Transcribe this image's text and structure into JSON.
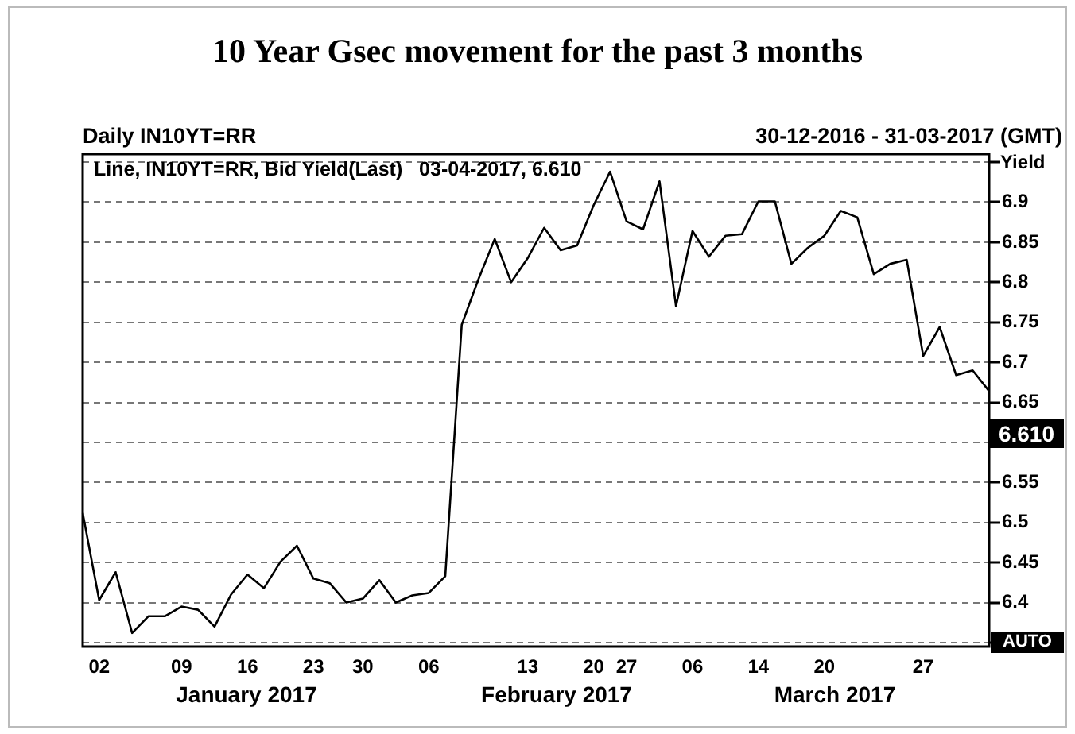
{
  "chart_data": {
    "type": "line",
    "title": "10 Year Gsec movement for the past 3 months",
    "subtitle": "Daily IN10YT=RR",
    "ylabel": "Yield",
    "categories": [
      null,
      "02",
      null,
      null,
      null,
      null,
      "09",
      null,
      null,
      null,
      "16",
      null,
      null,
      null,
      "23",
      null,
      null,
      "30",
      null,
      null,
      null,
      "06",
      null,
      null,
      null,
      null,
      null,
      "13",
      null,
      null,
      null,
      "20",
      null,
      "27",
      null,
      null,
      null,
      "06",
      null,
      null,
      null,
      "14",
      null,
      null,
      null,
      "20",
      null,
      null,
      null,
      null,
      null,
      "27",
      null,
      null,
      null,
      null
    ],
    "series": [
      {
        "color": "#000000",
        "values": [
          6.512,
          6.403,
          6.438,
          6.362,
          6.383,
          6.383,
          6.395,
          6.391,
          6.37,
          6.41,
          6.435,
          6.418,
          6.451,
          6.471,
          6.43,
          6.424,
          6.4,
          6.405,
          6.428,
          6.4,
          6.409,
          6.412,
          6.433,
          6.747,
          6.803,
          6.854,
          6.8,
          6.83,
          6.868,
          6.84,
          6.846,
          6.896,
          6.938,
          6.876,
          6.866,
          6.926,
          6.77,
          6.864,
          6.832,
          6.858,
          6.86,
          6.901,
          6.901,
          6.823,
          6.843,
          6.858,
          6.889,
          6.881,
          6.81,
          6.823,
          6.828,
          6.708,
          6.744,
          6.684,
          6.69,
          6.664
        ]
      }
    ],
    "ylim": [
      6.345,
      6.96
    ],
    "yticks": [
      {
        "value": 6.35,
        "label": null
      },
      6.4,
      6.45,
      6.5,
      6.55,
      {
        "value": 6.6,
        "label": null
      },
      6.65,
      6.7,
      6.75,
      6.8,
      6.85,
      6.9,
      {
        "value": 6.95,
        "label": null
      }
    ],
    "grid": "y",
    "legend": false,
    "marker": "none",
    "line_style": "solid",
    "annotations": [
      "30-12-2016 - 31-03-2017 (GMT)",
      "Line, IN10YT=RR, Bid Yield(Last)   03-04-2017, 6.610",
      "AUTO",
      "6.610",
      "January 2017",
      "February 2017",
      "March 2017"
    ]
  }
}
